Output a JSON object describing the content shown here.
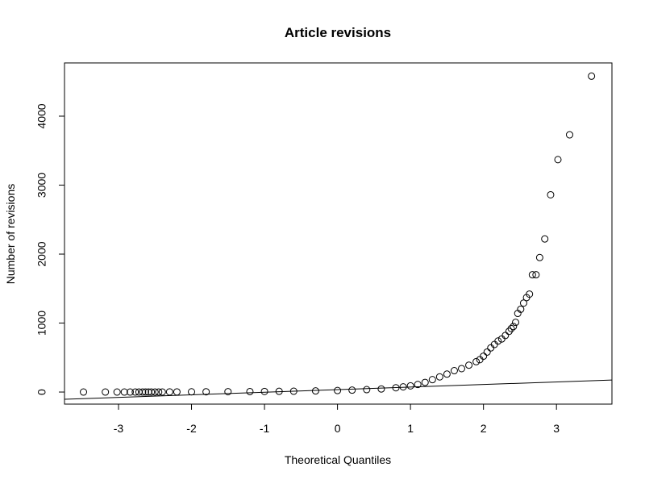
{
  "chart_data": {
    "type": "scatter",
    "title": "Article revisions",
    "x_label": "Theoretical Quantiles",
    "y_label": "Number of revisions",
    "x": [
      -3.48,
      -3.18,
      -3.02,
      -2.92,
      -2.84,
      -2.77,
      -2.72,
      -2.67,
      -2.63,
      -2.59,
      -2.55,
      -2.5,
      -2.45,
      -2.4,
      -2.3,
      -2.2,
      -2.0,
      -1.8,
      -1.5,
      -1.2,
      -1.0,
      -0.8,
      -0.6,
      -0.3,
      0.0,
      0.2,
      0.4,
      0.6,
      0.8,
      0.9,
      1.0,
      1.1,
      1.2,
      1.3,
      1.4,
      1.5,
      1.6,
      1.7,
      1.8,
      1.9,
      1.95,
      2.0,
      2.05,
      2.1,
      2.15,
      2.2,
      2.25,
      2.3,
      2.35,
      2.38,
      2.41,
      2.44,
      2.47,
      2.51,
      2.55,
      2.59,
      2.63,
      2.67,
      2.72,
      2.77,
      2.84,
      2.92,
      3.02,
      3.18,
      3.48
    ],
    "values": [
      0,
      0,
      0,
      0,
      0,
      0,
      0,
      0,
      0,
      0,
      0,
      0,
      1,
      1,
      2,
      2,
      3,
      4,
      5,
      7,
      8,
      10,
      12,
      16,
      22,
      28,
      35,
      45,
      62,
      75,
      90,
      110,
      140,
      180,
      220,
      260,
      310,
      340,
      390,
      440,
      470,
      520,
      580,
      640,
      690,
      740,
      770,
      820,
      880,
      920,
      950,
      1010,
      1140,
      1200,
      1290,
      1370,
      1420,
      1700,
      1700,
      1950,
      2220,
      2860,
      3370,
      3730,
      4580
    ],
    "color": "#000000",
    "reference_line": {
      "x": [
        -3.74,
        3.76
      ],
      "y": [
        -105,
        175
      ]
    },
    "xlim": [
      -3.74,
      3.76
    ],
    "ylim": [
      -175,
      4772
    ],
    "xticks": [
      -3,
      -2,
      -1,
      0,
      1,
      2,
      3
    ],
    "yticks": [
      0,
      1000,
      2000,
      3000,
      4000
    ]
  }
}
